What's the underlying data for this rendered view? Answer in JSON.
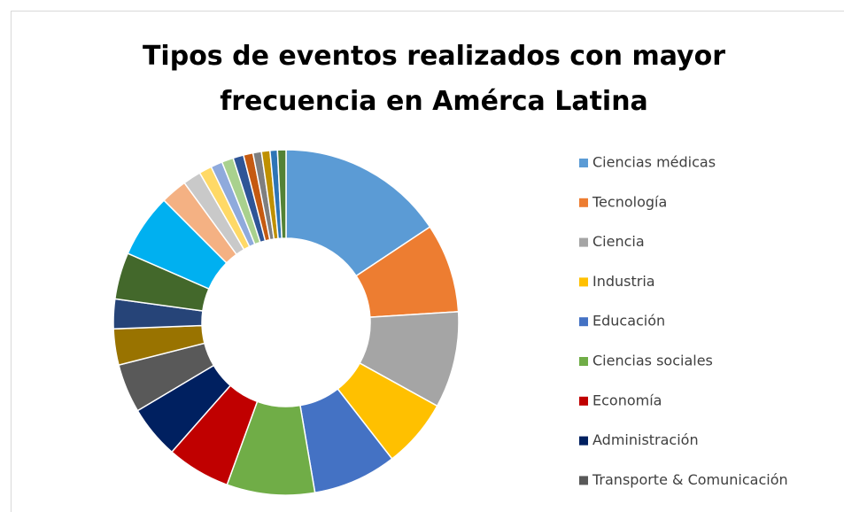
{
  "chart_data": {
    "type": "donut",
    "title": [
      "Tipos de eventos realizados con mayor",
      "frecuencia en Amérca Latina"
    ],
    "categories": [
      "Ciencias médicas",
      "Tecnología",
      "Ciencia",
      "Industria",
      "Educación",
      "Ciencias sociales",
      "Economía",
      "Administración",
      "Transporte & Comunicación",
      null,
      null,
      null,
      null,
      null,
      null,
      null,
      null,
      null,
      null,
      null,
      null,
      null,
      null,
      null
    ],
    "values": [
      15.8,
      8.4,
      9.1,
      6.5,
      7.9,
      8.3,
      6.0,
      5.0,
      4.6,
      3.4,
      2.8,
      4.4,
      6.0,
      2.5,
      1.7,
      1.2,
      1.1,
      1.1,
      1.0,
      0.9,
      0.8,
      0.8,
      0.7,
      0.8
    ],
    "colors": [
      "#5b9bd5",
      "#ed7d31",
      "#a5a5a5",
      "#ffc000",
      "#4472c4",
      "#70ad47",
      "#c00000",
      "#002060",
      "#595959",
      "#997300",
      "#264478",
      "#43682b",
      "#00b0f0",
      "#f4b183",
      "#c9c9c9",
      "#ffd966",
      "#8faadc",
      "#a9d18e",
      "#2f5597",
      "#c55a11",
      "#7f7f7f",
      "#bf9000",
      "#2e75b6",
      "#548235"
    ]
  }
}
